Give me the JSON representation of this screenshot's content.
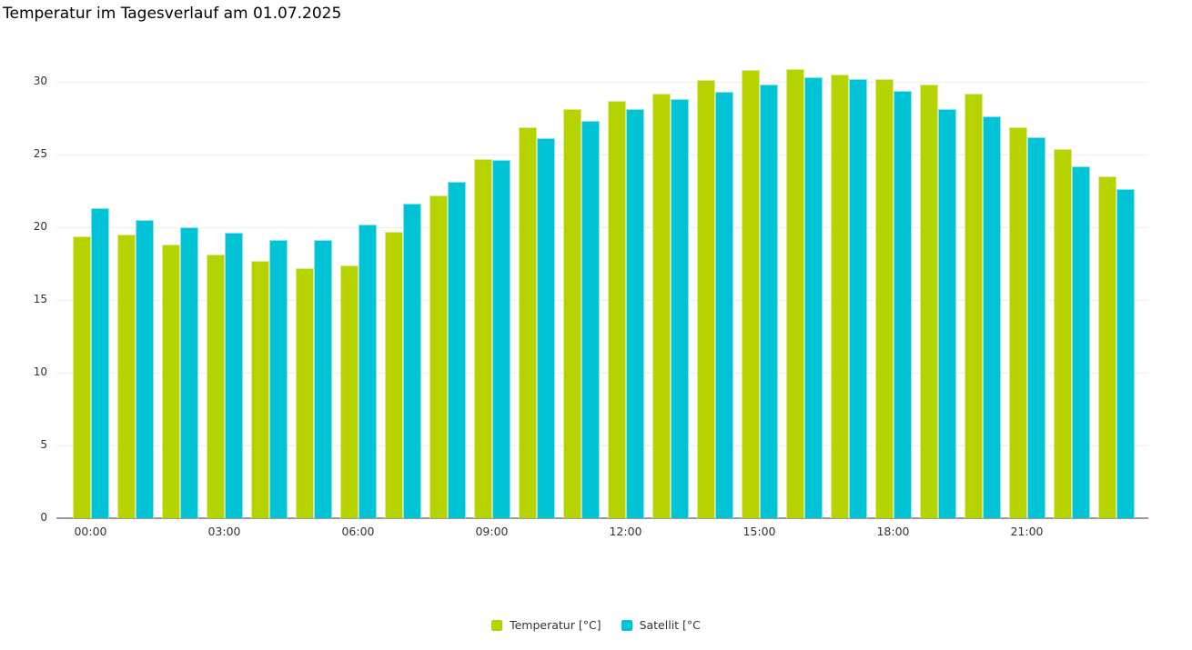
{
  "title": "Temperatur im Tagesverlauf am 01.07.2025",
  "chart_data": {
    "type": "bar",
    "title": "Temperatur im Tagesverlauf am 01.07.2025",
    "categories": [
      "00:00",
      "01:00",
      "02:00",
      "03:00",
      "04:00",
      "05:00",
      "06:00",
      "07:00",
      "08:00",
      "09:00",
      "10:00",
      "11:00",
      "12:00",
      "13:00",
      "14:00",
      "15:00",
      "16:00",
      "17:00",
      "18:00",
      "19:00",
      "20:00",
      "21:00",
      "22:00",
      "23:00"
    ],
    "x_tick_labels": [
      "00:00",
      "03:00",
      "06:00",
      "09:00",
      "12:00",
      "15:00",
      "18:00",
      "21:00"
    ],
    "x_tick_every": 3,
    "series": [
      {
        "name": "Temperatur [°C]",
        "color": "#b6d300",
        "values": [
          19.4,
          19.5,
          18.8,
          18.1,
          17.7,
          17.2,
          17.4,
          19.7,
          22.2,
          24.7,
          26.9,
          28.1,
          28.7,
          29.2,
          30.1,
          30.8,
          30.9,
          30.5,
          30.2,
          29.8,
          29.2,
          26.9,
          25.4,
          23.5
        ]
      },
      {
        "name": "Satellit [°C",
        "color": "#00c3d6",
        "values": [
          21.3,
          20.5,
          20.0,
          19.6,
          19.1,
          19.1,
          20.2,
          21.6,
          23.1,
          24.6,
          26.1,
          27.3,
          28.1,
          28.8,
          29.3,
          29.8,
          30.3,
          30.2,
          29.4,
          28.1,
          27.6,
          26.2,
          24.2,
          22.6
        ]
      }
    ],
    "xlabel": "",
    "ylabel": "",
    "ylim": [
      0,
      30
    ],
    "y_ticks": [
      0,
      5,
      10,
      15,
      20,
      25,
      30
    ],
    "grid": "horizontal",
    "legend_position": "bottom-center",
    "axis_line_color": "#9a9a9a",
    "gridline_color": "#eeeeee"
  },
  "legend": {
    "items": [
      {
        "label": "Temperatur [°C]",
        "color": "#b6d300"
      },
      {
        "label": "Satellit [°C",
        "color": "#00c3d6"
      }
    ]
  }
}
